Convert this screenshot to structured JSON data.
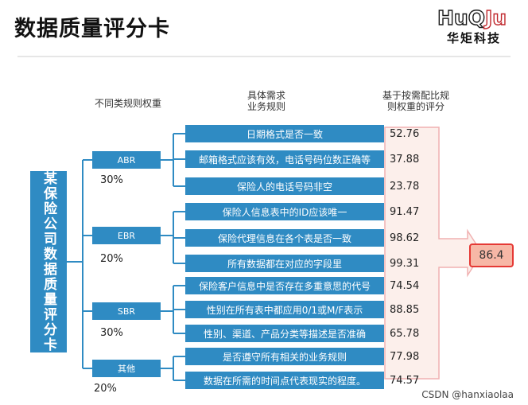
{
  "header": {
    "title": "数据质量评分卡",
    "logo_mark_left": "HuQ",
    "logo_mark_right": "Ju",
    "logo_name": "华矩科技"
  },
  "columns": {
    "weights_heading": "不同类规则权重",
    "rules_heading_line1": "具体需求",
    "rules_heading_line2": "业务规则",
    "scores_heading_line1": "基于按需配比规",
    "scores_heading_line2": "则权重的评分"
  },
  "root_label": "某保险公司数据质量评分卡",
  "categories": [
    {
      "label": "ABR",
      "weight": "30%"
    },
    {
      "label": "EBR",
      "weight": "20%"
    },
    {
      "label": "SBR",
      "weight": "30%"
    },
    {
      "label": "其他",
      "weight": "20%"
    }
  ],
  "rules": [
    {
      "text": "日期格式是否一致",
      "score": "52.76"
    },
    {
      "text": "邮箱格式应该有效，电话号码位数正确等",
      "score": "37.88"
    },
    {
      "text": "保险人的电话号码非空",
      "score": "23.78"
    },
    {
      "text": "保险人信息表中的ID应该唯一",
      "score": "91.47"
    },
    {
      "text": "保险代理信息在各个表是否一致",
      "score": "98.62"
    },
    {
      "text": "所有数据都在对应的字段里",
      "score": "99.31"
    },
    {
      "text": "保险客户信息中是否存在多重意思的代号",
      "score": "74.54"
    },
    {
      "text": "性别在所有表中都应用0/1或M/F表示",
      "score": "88.85"
    },
    {
      "text": "性别、渠道、产品分类等描述是否准确",
      "score": "65.78"
    },
    {
      "text": "是否遵守所有相关的业务规则",
      "score": "77.98"
    },
    {
      "text": "数据在所需的时间点代表现实的程度。",
      "score": "74.57"
    }
  ],
  "final_score": "86.4",
  "watermark": "CSDN @hanxiaolaa",
  "colors": {
    "box_fill": "#2f8bc3",
    "connector": "#2f8bc3",
    "final_border": "#e53935",
    "final_fill": "#f7b7a6"
  }
}
